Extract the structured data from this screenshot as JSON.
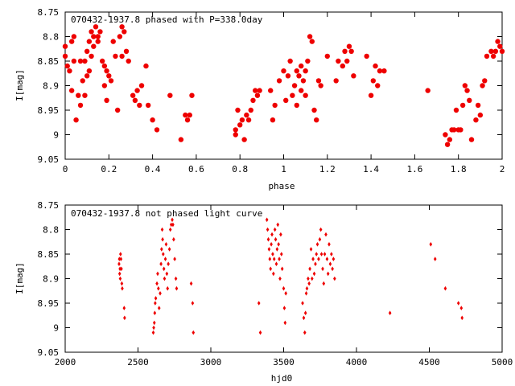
{
  "chart_data": [
    {
      "id": "phased",
      "type": "scatter",
      "title": "070432-1937.8 phased with P=338.0day",
      "xlabel": "phase",
      "ylabel": "I[mag]",
      "xlim": [
        0,
        2
      ],
      "ylim": [
        9.05,
        8.75
      ],
      "y_inverted": true,
      "marker": "filled circle",
      "color": "#ee0000",
      "xticks": [
        "0",
        "0.2",
        "0.4",
        "0.6",
        "0.8",
        "1",
        "1.2",
        "1.4",
        "1.6",
        "1.8",
        "2"
      ],
      "yticks": [
        "8.75",
        "8.8",
        "8.85",
        "8.9",
        "8.95",
        "9",
        "9.05"
      ],
      "points": [
        [
          0.0,
          8.84
        ],
        [
          0.0,
          8.82
        ],
        [
          0.01,
          8.86
        ],
        [
          0.02,
          8.87
        ],
        [
          0.03,
          8.81
        ],
        [
          0.03,
          8.91
        ],
        [
          0.04,
          8.8
        ],
        [
          0.04,
          8.85
        ],
        [
          0.05,
          8.97
        ],
        [
          0.06,
          8.92
        ],
        [
          0.07,
          8.94
        ],
        [
          0.07,
          8.85
        ],
        [
          0.08,
          8.89
        ],
        [
          0.09,
          8.92
        ],
        [
          0.09,
          8.85
        ],
        [
          0.1,
          8.88
        ],
        [
          0.1,
          8.83
        ],
        [
          0.11,
          8.81
        ],
        [
          0.11,
          8.87
        ],
        [
          0.12,
          8.84
        ],
        [
          0.12,
          8.79
        ],
        [
          0.13,
          8.8
        ],
        [
          0.13,
          8.82
        ],
        [
          0.14,
          8.78
        ],
        [
          0.15,
          8.8
        ],
        [
          0.15,
          8.81
        ],
        [
          0.16,
          8.79
        ],
        [
          0.17,
          8.85
        ],
        [
          0.18,
          8.86
        ],
        [
          0.18,
          8.9
        ],
        [
          0.19,
          8.87
        ],
        [
          0.19,
          8.93
        ],
        [
          0.2,
          8.88
        ],
        [
          0.21,
          8.89
        ],
        [
          0.22,
          8.81
        ],
        [
          0.23,
          8.84
        ],
        [
          0.24,
          8.95
        ],
        [
          0.25,
          8.8
        ],
        [
          0.26,
          8.78
        ],
        [
          0.26,
          8.84
        ],
        [
          0.27,
          8.79
        ],
        [
          0.28,
          8.83
        ],
        [
          0.29,
          8.85
        ],
        [
          0.31,
          8.92
        ],
        [
          0.32,
          8.93
        ],
        [
          0.33,
          8.91
        ],
        [
          0.34,
          8.94
        ],
        [
          0.35,
          8.9
        ],
        [
          0.37,
          8.86
        ],
        [
          0.38,
          8.94
        ],
        [
          0.4,
          8.97
        ],
        [
          0.42,
          8.99
        ],
        [
          0.48,
          8.92
        ],
        [
          0.53,
          9.01
        ],
        [
          0.55,
          8.96
        ],
        [
          0.56,
          8.97
        ],
        [
          0.57,
          8.96
        ],
        [
          0.58,
          8.92
        ],
        [
          0.78,
          9.0
        ],
        [
          0.78,
          8.99
        ],
        [
          0.79,
          8.95
        ],
        [
          0.8,
          8.98
        ],
        [
          0.81,
          8.97
        ],
        [
          0.82,
          9.01
        ],
        [
          0.83,
          8.96
        ],
        [
          0.84,
          8.97
        ],
        [
          0.85,
          8.95
        ],
        [
          0.86,
          8.93
        ],
        [
          0.87,
          8.91
        ],
        [
          0.88,
          8.92
        ],
        [
          0.89,
          8.91
        ],
        [
          0.94,
          8.91
        ],
        [
          0.95,
          8.97
        ],
        [
          0.96,
          8.94
        ],
        [
          0.98,
          8.89
        ],
        [
          1.0,
          8.87
        ],
        [
          1.01,
          8.93
        ],
        [
          1.02,
          8.88
        ],
        [
          1.03,
          8.85
        ],
        [
          1.04,
          8.92
        ],
        [
          1.05,
          8.9
        ],
        [
          1.06,
          8.87
        ],
        [
          1.06,
          8.94
        ],
        [
          1.07,
          8.88
        ],
        [
          1.08,
          8.86
        ],
        [
          1.08,
          8.91
        ],
        [
          1.09,
          8.89
        ],
        [
          1.1,
          8.92
        ],
        [
          1.1,
          8.87
        ],
        [
          1.11,
          8.85
        ],
        [
          1.12,
          8.8
        ],
        [
          1.13,
          8.81
        ],
        [
          1.14,
          8.95
        ],
        [
          1.15,
          8.97
        ],
        [
          1.16,
          8.89
        ],
        [
          1.17,
          8.9
        ],
        [
          1.2,
          8.84
        ],
        [
          1.24,
          8.89
        ],
        [
          1.25,
          8.85
        ],
        [
          1.27,
          8.86
        ],
        [
          1.28,
          8.83
        ],
        [
          1.29,
          8.85
        ],
        [
          1.3,
          8.82
        ],
        [
          1.31,
          8.83
        ],
        [
          1.32,
          8.88
        ],
        [
          1.38,
          8.84
        ],
        [
          1.4,
          8.92
        ],
        [
          1.41,
          8.89
        ],
        [
          1.42,
          8.86
        ],
        [
          1.43,
          8.9
        ],
        [
          1.44,
          8.87
        ],
        [
          1.46,
          8.87
        ],
        [
          1.66,
          8.91
        ],
        [
          1.74,
          9.0
        ],
        [
          1.75,
          9.02
        ],
        [
          1.76,
          9.01
        ],
        [
          1.77,
          8.99
        ],
        [
          1.78,
          8.99
        ],
        [
          1.79,
          8.95
        ],
        [
          1.8,
          8.99
        ],
        [
          1.81,
          8.99
        ],
        [
          1.82,
          8.94
        ],
        [
          1.83,
          8.9
        ],
        [
          1.84,
          8.91
        ],
        [
          1.85,
          8.93
        ],
        [
          1.86,
          9.01
        ],
        [
          1.88,
          8.97
        ],
        [
          1.89,
          8.94
        ],
        [
          1.9,
          8.96
        ],
        [
          1.91,
          8.9
        ],
        [
          1.92,
          8.89
        ],
        [
          1.93,
          8.84
        ],
        [
          1.95,
          8.83
        ],
        [
          1.96,
          8.84
        ],
        [
          1.97,
          8.83
        ],
        [
          1.98,
          8.81
        ],
        [
          1.99,
          8.82
        ],
        [
          2.0,
          8.83
        ]
      ]
    },
    {
      "id": "unphased",
      "type": "scatter",
      "title": "070432-1937.8 not phased light curve",
      "xlabel": "hjd0",
      "ylabel": "I[mag]",
      "xlim": [
        2000,
        5000
      ],
      "ylim": [
        9.05,
        8.75
      ],
      "y_inverted": true,
      "marker": "filled diamond",
      "color": "#ee0000",
      "xticks": [
        "2000",
        "2500",
        "3000",
        "3500",
        "4000",
        "4500",
        "5000"
      ],
      "yticks": [
        "8.75",
        "8.8",
        "8.85",
        "8.9",
        "8.95",
        "9",
        "9.05"
      ],
      "points": [
        [
          2370,
          8.87
        ],
        [
          2372,
          8.86
        ],
        [
          2374,
          8.89
        ],
        [
          2376,
          8.88
        ],
        [
          2378,
          8.9
        ],
        [
          2380,
          8.85
        ],
        [
          2383,
          8.86
        ],
        [
          2386,
          8.88
        ],
        [
          2389,
          8.91
        ],
        [
          2392,
          8.92
        ],
        [
          2405,
          8.96
        ],
        [
          2408,
          8.98
        ],
        [
          2605,
          9.01
        ],
        [
          2608,
          9.0
        ],
        [
          2612,
          8.99
        ],
        [
          2615,
          8.97
        ],
        [
          2618,
          8.95
        ],
        [
          2622,
          8.94
        ],
        [
          2630,
          8.91
        ],
        [
          2635,
          8.89
        ],
        [
          2640,
          8.92
        ],
        [
          2645,
          8.96
        ],
        [
          2652,
          8.93
        ],
        [
          2658,
          8.87
        ],
        [
          2662,
          8.84
        ],
        [
          2666,
          8.8
        ],
        [
          2669,
          8.82
        ],
        [
          2673,
          8.85
        ],
        [
          2678,
          8.88
        ],
        [
          2682,
          8.9
        ],
        [
          2688,
          8.86
        ],
        [
          2693,
          8.83
        ],
        [
          2698,
          8.89
        ],
        [
          2703,
          8.92
        ],
        [
          2708,
          8.87
        ],
        [
          2716,
          8.84
        ],
        [
          2722,
          8.8
        ],
        [
          2728,
          8.79
        ],
        [
          2735,
          8.78
        ],
        [
          2740,
          8.79
        ],
        [
          2745,
          8.82
        ],
        [
          2752,
          8.86
        ],
        [
          2760,
          8.9
        ],
        [
          2765,
          8.92
        ],
        [
          2865,
          8.91
        ],
        [
          2875,
          8.95
        ],
        [
          2880,
          9.01
        ],
        [
          3330,
          8.95
        ],
        [
          3340,
          9.01
        ],
        [
          3385,
          8.78
        ],
        [
          3390,
          8.8
        ],
        [
          3395,
          8.82
        ],
        [
          3400,
          8.84
        ],
        [
          3405,
          8.86
        ],
        [
          3410,
          8.88
        ],
        [
          3415,
          8.83
        ],
        [
          3420,
          8.81
        ],
        [
          3425,
          8.85
        ],
        [
          3430,
          8.89
        ],
        [
          3435,
          8.86
        ],
        [
          3440,
          8.8
        ],
        [
          3445,
          8.82
        ],
        [
          3450,
          8.87
        ],
        [
          3455,
          8.84
        ],
        [
          3460,
          8.79
        ],
        [
          3465,
          8.83
        ],
        [
          3470,
          8.86
        ],
        [
          3475,
          8.9
        ],
        [
          3480,
          8.81
        ],
        [
          3485,
          8.85
        ],
        [
          3490,
          8.88
        ],
        [
          3500,
          8.92
        ],
        [
          3505,
          8.96
        ],
        [
          3510,
          8.99
        ],
        [
          3515,
          8.93
        ],
        [
          3630,
          8.95
        ],
        [
          3638,
          8.98
        ],
        [
          3645,
          9.01
        ],
        [
          3650,
          8.97
        ],
        [
          3655,
          8.93
        ],
        [
          3660,
          8.92
        ],
        [
          3668,
          8.9
        ],
        [
          3675,
          8.91
        ],
        [
          3680,
          8.88
        ],
        [
          3688,
          8.84
        ],
        [
          3695,
          8.9
        ],
        [
          3702,
          8.86
        ],
        [
          3710,
          8.89
        ],
        [
          3718,
          8.87
        ],
        [
          3725,
          8.85
        ],
        [
          3732,
          8.83
        ],
        [
          3740,
          8.86
        ],
        [
          3748,
          8.82
        ],
        [
          3755,
          8.8
        ],
        [
          3760,
          8.85
        ],
        [
          3768,
          8.88
        ],
        [
          3775,
          8.91
        ],
        [
          3782,
          8.85
        ],
        [
          3790,
          8.81
        ],
        [
          3798,
          8.86
        ],
        [
          3805,
          8.89
        ],
        [
          3812,
          8.83
        ],
        [
          3820,
          8.87
        ],
        [
          3828,
          8.85
        ],
        [
          3835,
          8.88
        ],
        [
          3842,
          8.86
        ],
        [
          3850,
          8.9
        ],
        [
          4230,
          8.97
        ],
        [
          4510,
          8.83
        ],
        [
          4540,
          8.86
        ],
        [
          4610,
          8.92
        ],
        [
          4700,
          8.95
        ],
        [
          4720,
          8.96
        ],
        [
          4725,
          8.98
        ]
      ]
    }
  ]
}
